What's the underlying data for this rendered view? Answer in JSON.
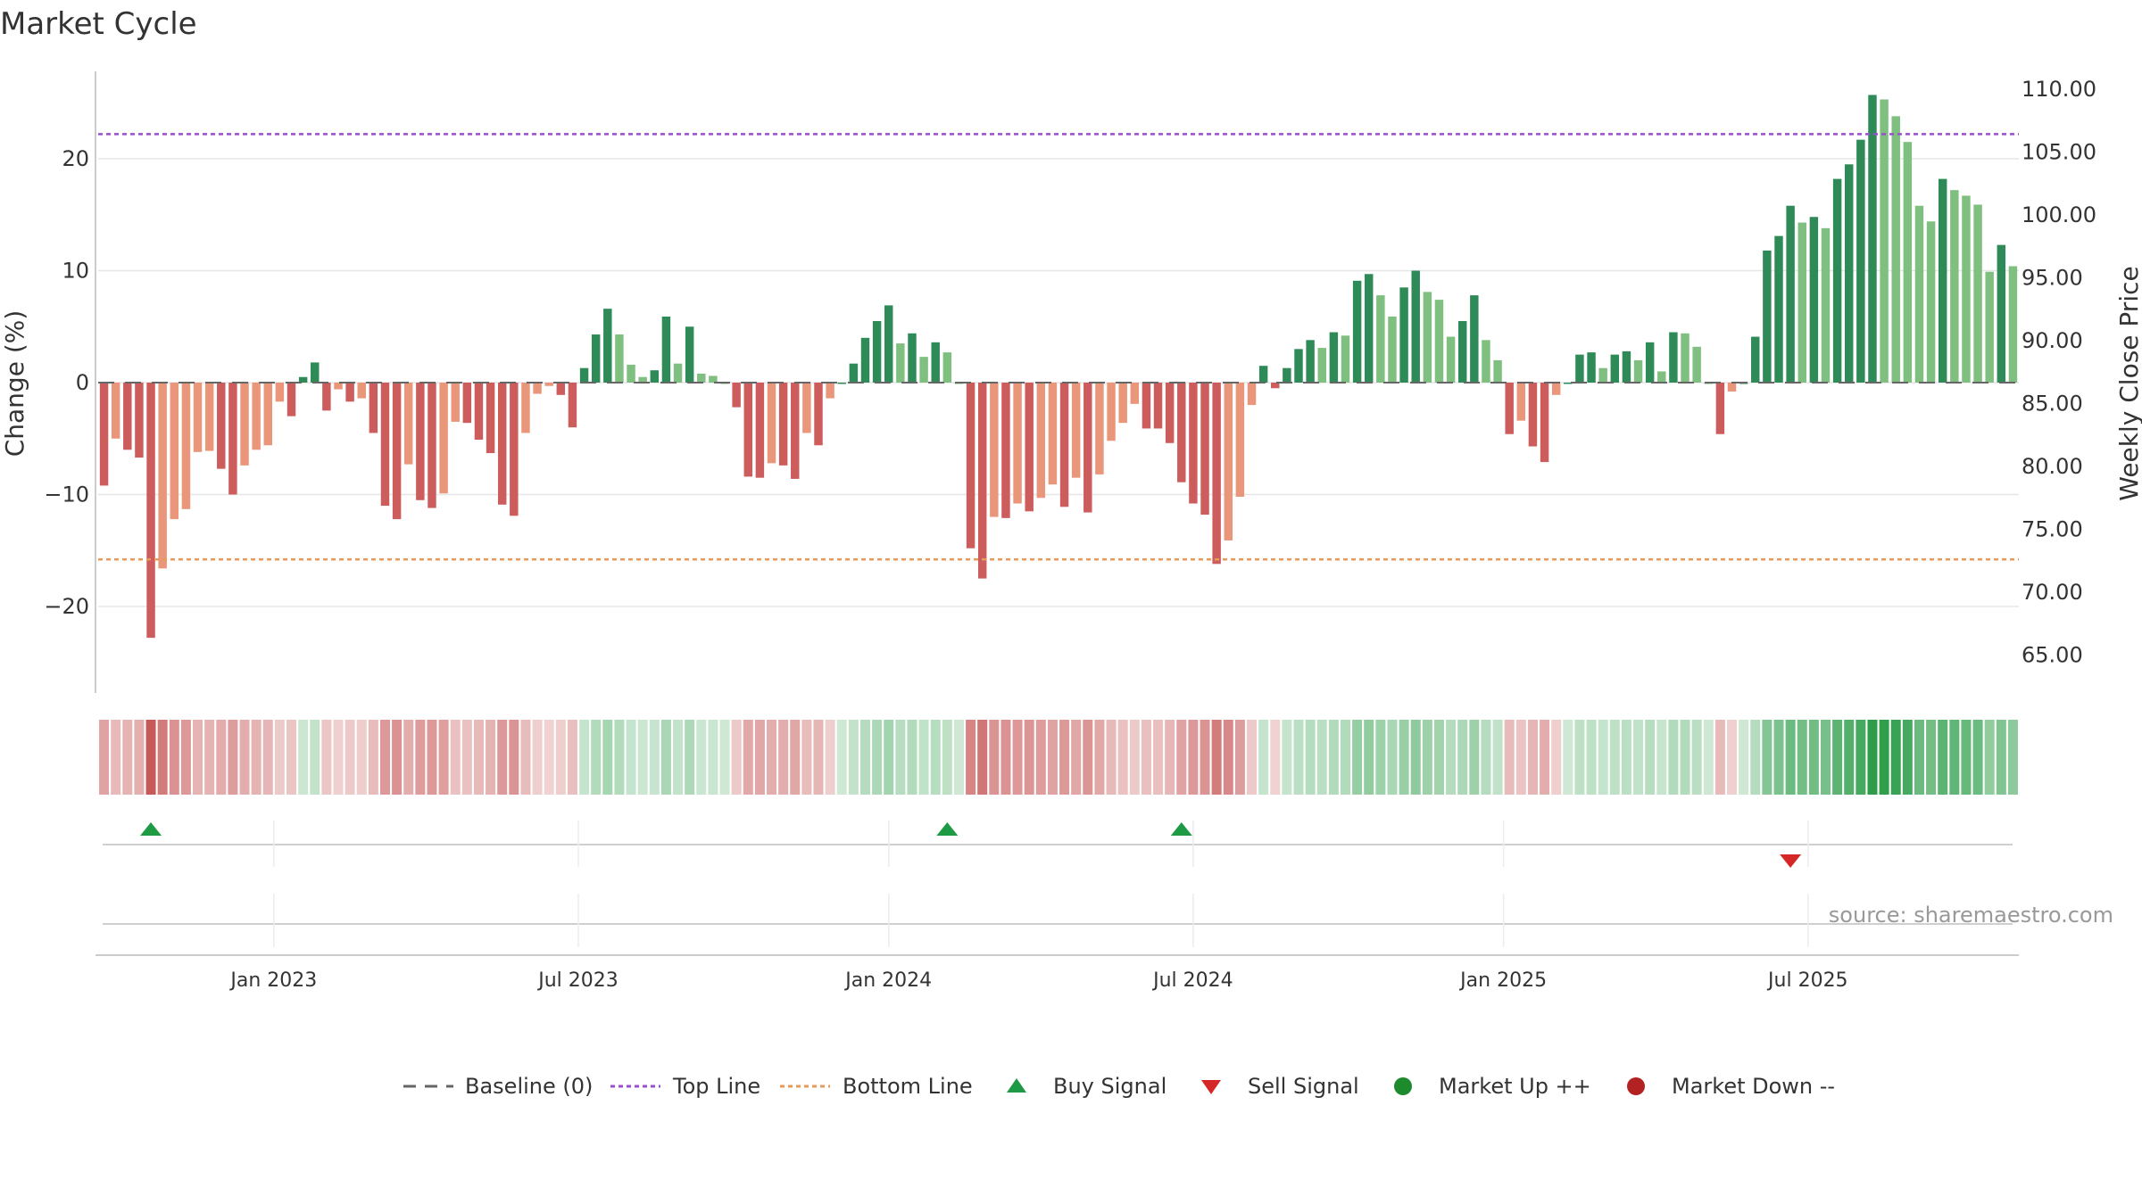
{
  "chart_data": {
    "type": "bar",
    "title": "Market Cycle",
    "ylabel_left": "Change (%)",
    "ylabel_right": "Weekly Close Price",
    "left_ylim": [
      -28,
      28
    ],
    "left_ticks": [
      -20,
      -10,
      0,
      10,
      20
    ],
    "left_tick_labels": [
      "−20",
      "−10",
      "0",
      "10",
      "20"
    ],
    "right_ylim": [
      62.0,
      111.4
    ],
    "right_ticks": [
      65,
      70,
      75,
      80,
      85,
      90,
      95,
      100,
      105,
      110
    ],
    "right_tick_labels": [
      "65.00",
      "70.00",
      "75.00",
      "80.00",
      "85.00",
      "90.00",
      "95.00",
      "100.00",
      "105.00",
      "110.00"
    ],
    "top_line": 22.2,
    "bottom_line": -15.8,
    "x_ticks": [
      "Jan 2023",
      "Jul 2023",
      "Jan 2024",
      "Jul 2024",
      "Jan 2025",
      "Jul 2025"
    ],
    "x_tick_weeks": [
      14.5,
      40.5,
      67,
      93,
      119.5,
      145.5
    ],
    "grid": true,
    "legend_position": "bottom-center",
    "values": [
      -9.2,
      -5.0,
      -6.0,
      -6.7,
      -22.8,
      -16.6,
      -12.2,
      -11.3,
      -6.2,
      -6.1,
      -7.7,
      -10.0,
      -7.4,
      -6.0,
      -5.6,
      -1.7,
      -3.0,
      0.5,
      1.8,
      -2.5,
      -0.6,
      -1.7,
      -1.4,
      -4.5,
      -11.0,
      -12.2,
      -7.3,
      -10.5,
      -11.2,
      -9.9,
      -3.5,
      -3.6,
      -5.1,
      -6.3,
      -10.9,
      -11.9,
      -4.5,
      -1.0,
      -0.3,
      -1.1,
      -4.0,
      1.3,
      4.3,
      6.6,
      4.3,
      1.6,
      0.5,
      1.1,
      5.9,
      1.7,
      5.0,
      0.8,
      0.6,
      0.0,
      -2.2,
      -8.4,
      -8.5,
      -7.2,
      -7.4,
      -8.6,
      -4.5,
      -5.6,
      -1.4,
      0.0,
      1.7,
      4.0,
      5.5,
      6.9,
      3.5,
      4.4,
      2.3,
      3.6,
      2.7,
      0.0,
      -14.8,
      -17.5,
      -12.0,
      -12.1,
      -10.8,
      -11.5,
      -10.3,
      -9.1,
      -11.1,
      -8.5,
      -11.6,
      -8.2,
      -5.2,
      -3.6,
      -1.9,
      -4.1,
      -4.1,
      -5.4,
      -8.9,
      -10.8,
      -11.8,
      -16.2,
      -14.1,
      -10.2,
      -2.0,
      1.5,
      -0.5,
      1.3,
      3.0,
      3.8,
      3.1,
      4.5,
      4.2,
      9.1,
      9.7,
      7.8,
      5.9,
      8.5,
      10.0,
      8.1,
      7.4,
      4.1,
      5.5,
      7.8,
      3.8,
      2.0,
      -4.6,
      -3.4,
      -5.7,
      -7.1,
      -1.1,
      0.0,
      2.5,
      2.7,
      1.3,
      2.5,
      2.8,
      2.0,
      3.6,
      1.0,
      4.5,
      4.4,
      3.2,
      0.0,
      -4.6,
      -0.8,
      0.0,
      4.1,
      11.8,
      13.1,
      15.8,
      14.3,
      14.8,
      13.8,
      18.2,
      19.5,
      21.7,
      25.7,
      25.3,
      23.8,
      21.5,
      15.8,
      14.4,
      18.2,
      17.2,
      16.7,
      15.9,
      9.9,
      12.3,
      10.4
    ],
    "series": [
      {
        "name": "Baseline (0)",
        "color": "#666666"
      },
      {
        "name": "Top Line",
        "color": "#9a4fd0"
      },
      {
        "name": "Bottom Line",
        "color": "#e89a5a"
      },
      {
        "name": "Buy Signal",
        "color": "#1e9a45"
      },
      {
        "name": "Sell Signal",
        "color": "#d62728"
      },
      {
        "name": "Market Up ++",
        "color": "#1e8a2e"
      },
      {
        "name": "Market Down --",
        "color": "#b22222"
      }
    ],
    "buy_signal_weeks": [
      4,
      72,
      92
    ],
    "sell_signal_weeks": [
      144
    ],
    "colors": {
      "strong_up": "#2e8b57",
      "mild_up": "#7fbf7f",
      "strong_down": "#cd5c5c",
      "mild_down": "#e9967a",
      "grid": "#e6e6e6"
    }
  },
  "source_text": "source: sharemaestro.com"
}
